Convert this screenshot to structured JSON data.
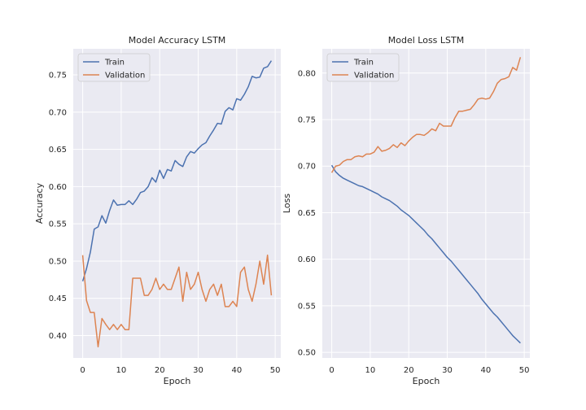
{
  "colors": {
    "train": "#4c72b0",
    "validation": "#dd8452"
  },
  "chart_data": [
    {
      "type": "line",
      "title": "Model Accuracy LSTM",
      "xlabel": "Epoch",
      "ylabel": "Accuracy",
      "xlim": [
        -2.45,
        51.45
      ],
      "ylim": [
        0.37,
        0.785
      ],
      "xticks": [
        "0",
        "10",
        "20",
        "30",
        "40",
        "50"
      ],
      "xtick_values": [
        0,
        10,
        20,
        30,
        40,
        50
      ],
      "yticks": [
        "0.40",
        "0.45",
        "0.50",
        "0.55",
        "0.60",
        "0.65",
        "0.70",
        "0.75"
      ],
      "ytick_values": [
        0.4,
        0.45,
        0.5,
        0.55,
        0.6,
        0.65,
        0.7,
        0.75
      ],
      "legend": "upper-left",
      "grid": true,
      "x": [
        0,
        1,
        2,
        3,
        4,
        5,
        6,
        7,
        8,
        9,
        10,
        11,
        12,
        13,
        14,
        15,
        16,
        17,
        18,
        19,
        20,
        21,
        22,
        23,
        24,
        25,
        26,
        27,
        28,
        29,
        30,
        31,
        32,
        33,
        34,
        35,
        36,
        37,
        38,
        39,
        40,
        41,
        42,
        43,
        44,
        45,
        46,
        47,
        48,
        49
      ],
      "series": [
        {
          "name": "Train",
          "color_key": "train",
          "values": [
            0.473,
            0.49,
            0.512,
            0.543,
            0.546,
            0.561,
            0.551,
            0.568,
            0.582,
            0.575,
            0.576,
            0.576,
            0.581,
            0.576,
            0.583,
            0.592,
            0.594,
            0.6,
            0.612,
            0.606,
            0.622,
            0.611,
            0.623,
            0.621,
            0.635,
            0.63,
            0.627,
            0.64,
            0.647,
            0.645,
            0.651,
            0.656,
            0.659,
            0.668,
            0.676,
            0.685,
            0.684,
            0.701,
            0.706,
            0.703,
            0.718,
            0.716,
            0.724,
            0.734,
            0.748,
            0.746,
            0.747,
            0.759,
            0.761,
            0.769
          ]
        },
        {
          "name": "Validation",
          "color_key": "validation",
          "values": [
            0.508,
            0.447,
            0.431,
            0.431,
            0.385,
            0.423,
            0.415,
            0.408,
            0.415,
            0.408,
            0.415,
            0.408,
            0.408,
            0.477,
            0.477,
            0.477,
            0.454,
            0.454,
            0.462,
            0.477,
            0.462,
            0.469,
            0.462,
            0.462,
            0.477,
            0.492,
            0.446,
            0.485,
            0.462,
            0.469,
            0.485,
            0.462,
            0.446,
            0.462,
            0.469,
            0.454,
            0.469,
            0.439,
            0.439,
            0.446,
            0.439,
            0.485,
            0.492,
            0.462,
            0.446,
            0.469,
            0.5,
            0.469,
            0.508,
            0.454
          ]
        }
      ]
    },
    {
      "type": "line",
      "title": "Model Loss LSTM",
      "xlabel": "Epoch",
      "ylabel": "Loss",
      "xlim": [
        -2.45,
        51.45
      ],
      "ylim": [
        0.494,
        0.826
      ],
      "xticks": [
        "0",
        "10",
        "20",
        "30",
        "40",
        "50"
      ],
      "xtick_values": [
        0,
        10,
        20,
        30,
        40,
        50
      ],
      "yticks": [
        "0.50",
        "0.55",
        "0.60",
        "0.65",
        "0.70",
        "0.75",
        "0.80"
      ],
      "ytick_values": [
        0.5,
        0.55,
        0.6,
        0.65,
        0.7,
        0.75,
        0.8
      ],
      "legend": "upper-left",
      "grid": true,
      "x": [
        0,
        1,
        2,
        3,
        4,
        5,
        6,
        7,
        8,
        9,
        10,
        11,
        12,
        13,
        14,
        15,
        16,
        17,
        18,
        19,
        20,
        21,
        22,
        23,
        24,
        25,
        26,
        27,
        28,
        29,
        30,
        31,
        32,
        33,
        34,
        35,
        36,
        37,
        38,
        39,
        40,
        41,
        42,
        43,
        44,
        45,
        46,
        47,
        48,
        49
      ],
      "series": [
        {
          "name": "Train",
          "color_key": "train",
          "values": [
            0.701,
            0.694,
            0.69,
            0.687,
            0.685,
            0.683,
            0.681,
            0.679,
            0.678,
            0.676,
            0.674,
            0.672,
            0.67,
            0.667,
            0.665,
            0.663,
            0.66,
            0.657,
            0.653,
            0.65,
            0.647,
            0.643,
            0.639,
            0.635,
            0.631,
            0.626,
            0.622,
            0.617,
            0.612,
            0.607,
            0.602,
            0.598,
            0.593,
            0.588,
            0.583,
            0.578,
            0.573,
            0.568,
            0.563,
            0.557,
            0.552,
            0.547,
            0.542,
            0.538,
            0.533,
            0.528,
            0.523,
            0.518,
            0.514,
            0.51
          ]
        },
        {
          "name": "Validation",
          "color_key": "validation",
          "values": [
            0.693,
            0.7,
            0.701,
            0.705,
            0.707,
            0.707,
            0.71,
            0.711,
            0.71,
            0.713,
            0.713,
            0.715,
            0.721,
            0.716,
            0.717,
            0.719,
            0.723,
            0.72,
            0.725,
            0.722,
            0.727,
            0.731,
            0.734,
            0.734,
            0.733,
            0.736,
            0.74,
            0.738,
            0.746,
            0.743,
            0.743,
            0.743,
            0.752,
            0.759,
            0.759,
            0.76,
            0.761,
            0.766,
            0.772,
            0.773,
            0.772,
            0.773,
            0.78,
            0.789,
            0.793,
            0.794,
            0.796,
            0.806,
            0.803,
            0.817
          ]
        }
      ]
    }
  ]
}
